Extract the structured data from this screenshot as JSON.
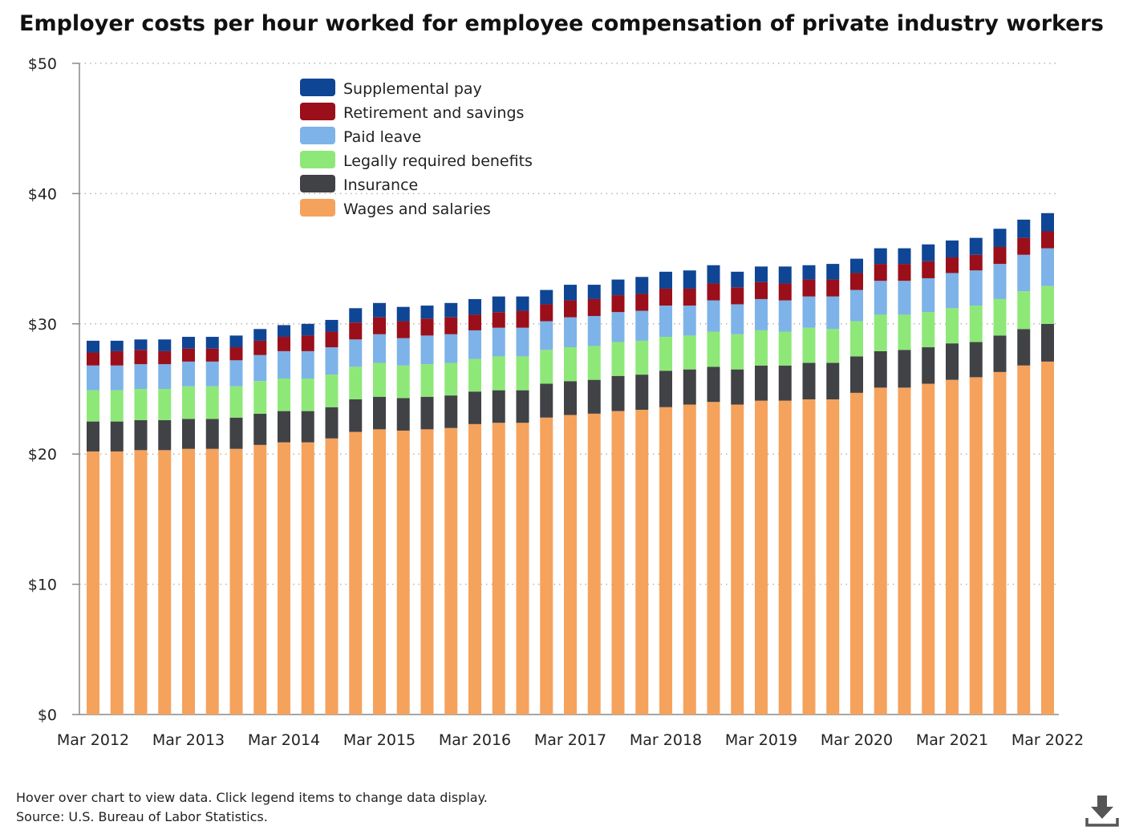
{
  "title": "Employer costs per hour worked for employee compensation of private industry workers",
  "footer": {
    "note": "Hover over chart to view data. Click legend items to change data display.",
    "source": "Source: U.S. Bureau of Labor Statistics."
  },
  "icons": {
    "download": "download-icon"
  },
  "chart_data": {
    "type": "bar",
    "stacked": true,
    "title": "Employer costs per hour worked for employee compensation of private industry workers",
    "xlabel": "",
    "ylabel": "",
    "ylim": [
      0,
      50
    ],
    "yticks": [
      0,
      10,
      20,
      30,
      40,
      50
    ],
    "ytick_labels": [
      "$0",
      "$10",
      "$20",
      "$30",
      "$40",
      "$50"
    ],
    "xtick_labels": [
      "Mar 2012",
      "Mar 2013",
      "Mar 2014",
      "Mar 2015",
      "Mar 2016",
      "Mar 2017",
      "Mar 2018",
      "Mar 2019",
      "Mar 2020",
      "Mar 2021",
      "Mar 2022"
    ],
    "xtick_every": 4,
    "grid": true,
    "legend_position": "top-left",
    "categories": [
      "Mar 2012",
      "Jun 2012",
      "Sep 2012",
      "Dec 2012",
      "Mar 2013",
      "Jun 2013",
      "Sep 2013",
      "Dec 2013",
      "Mar 2014",
      "Jun 2014",
      "Sep 2014",
      "Dec 2014",
      "Mar 2015",
      "Jun 2015",
      "Sep 2015",
      "Dec 2015",
      "Mar 2016",
      "Jun 2016",
      "Sep 2016",
      "Dec 2016",
      "Mar 2017",
      "Jun 2017",
      "Sep 2017",
      "Dec 2017",
      "Mar 2018",
      "Jun 2018",
      "Sep 2018",
      "Dec 2018",
      "Mar 2019",
      "Jun 2019",
      "Sep 2019",
      "Dec 2019",
      "Mar 2020",
      "Jun 2020",
      "Sep 2020",
      "Dec 2020",
      "Mar 2021",
      "Jun 2021",
      "Sep 2021",
      "Dec 2021",
      "Mar 2022"
    ],
    "series": [
      {
        "name": "Wages and salaries",
        "color": "#f5a25d",
        "values": [
          20.2,
          20.2,
          20.3,
          20.3,
          20.4,
          20.4,
          20.4,
          20.7,
          20.9,
          20.9,
          21.2,
          21.7,
          21.9,
          21.8,
          21.9,
          22.0,
          22.3,
          22.4,
          22.4,
          22.8,
          23.0,
          23.1,
          23.3,
          23.4,
          23.6,
          23.8,
          24.0,
          23.8,
          24.1,
          24.1,
          24.2,
          24.2,
          24.7,
          25.1,
          25.1,
          25.4,
          25.7,
          25.9,
          26.3,
          26.8,
          27.1
        ]
      },
      {
        "name": "Insurance",
        "color": "#414246",
        "values": [
          2.3,
          2.3,
          2.3,
          2.3,
          2.3,
          2.3,
          2.4,
          2.4,
          2.4,
          2.4,
          2.4,
          2.5,
          2.5,
          2.5,
          2.5,
          2.5,
          2.5,
          2.5,
          2.5,
          2.6,
          2.6,
          2.6,
          2.7,
          2.7,
          2.8,
          2.7,
          2.7,
          2.7,
          2.7,
          2.7,
          2.8,
          2.8,
          2.8,
          2.8,
          2.9,
          2.8,
          2.8,
          2.7,
          2.8,
          2.8,
          2.9
        ]
      },
      {
        "name": "Legally required benefits",
        "color": "#8ee878",
        "values": [
          2.4,
          2.4,
          2.4,
          2.4,
          2.5,
          2.5,
          2.4,
          2.5,
          2.5,
          2.5,
          2.5,
          2.5,
          2.6,
          2.5,
          2.5,
          2.5,
          2.5,
          2.6,
          2.6,
          2.6,
          2.6,
          2.6,
          2.6,
          2.6,
          2.6,
          2.6,
          2.7,
          2.7,
          2.7,
          2.6,
          2.7,
          2.6,
          2.7,
          2.8,
          2.7,
          2.7,
          2.7,
          2.8,
          2.8,
          2.9,
          2.9
        ]
      },
      {
        "name": "Paid leave",
        "color": "#7db3e8",
        "values": [
          1.9,
          1.9,
          1.9,
          1.9,
          1.9,
          1.9,
          2.0,
          2.0,
          2.1,
          2.1,
          2.1,
          2.1,
          2.2,
          2.1,
          2.2,
          2.2,
          2.2,
          2.2,
          2.2,
          2.2,
          2.3,
          2.3,
          2.3,
          2.3,
          2.4,
          2.3,
          2.4,
          2.3,
          2.4,
          2.4,
          2.4,
          2.5,
          2.4,
          2.6,
          2.6,
          2.6,
          2.7,
          2.7,
          2.7,
          2.8,
          2.9
        ]
      },
      {
        "name": "Retirement and savings",
        "color": "#9a0f1a",
        "values": [
          1.0,
          1.1,
          1.1,
          1.0,
          1.0,
          1.0,
          1.0,
          1.1,
          1.1,
          1.2,
          1.2,
          1.3,
          1.3,
          1.3,
          1.3,
          1.3,
          1.2,
          1.2,
          1.3,
          1.3,
          1.3,
          1.3,
          1.3,
          1.3,
          1.3,
          1.3,
          1.3,
          1.3,
          1.3,
          1.3,
          1.3,
          1.3,
          1.3,
          1.3,
          1.3,
          1.3,
          1.2,
          1.2,
          1.3,
          1.3,
          1.3
        ]
      },
      {
        "name": "Supplemental pay",
        "color": "#0f4595",
        "values": [
          0.9,
          0.8,
          0.8,
          0.9,
          0.9,
          0.9,
          0.9,
          0.9,
          0.9,
          0.9,
          0.9,
          1.1,
          1.1,
          1.1,
          1.0,
          1.1,
          1.2,
          1.2,
          1.1,
          1.1,
          1.2,
          1.1,
          1.2,
          1.3,
          1.3,
          1.4,
          1.4,
          1.2,
          1.2,
          1.3,
          1.1,
          1.2,
          1.1,
          1.2,
          1.2,
          1.3,
          1.3,
          1.3,
          1.4,
          1.4,
          1.4
        ]
      }
    ]
  }
}
